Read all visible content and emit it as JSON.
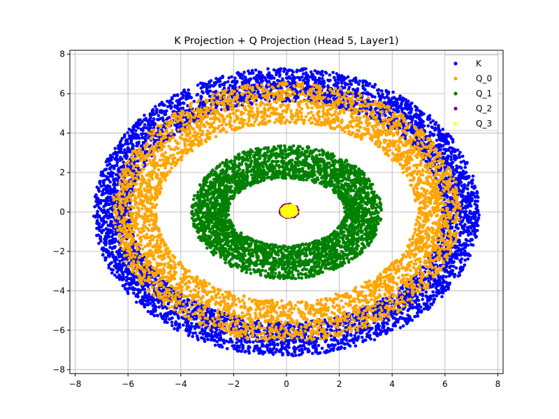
{
  "chart_data": {
    "type": "scatter",
    "title": "K Projection + Q Projection (Head 5, Layer1)",
    "xlabel": "",
    "ylabel": "",
    "xlim": [
      -8.2,
      8.2
    ],
    "ylim": [
      -8.2,
      8.2
    ],
    "xticks": [
      -8,
      -6,
      -4,
      -2,
      0,
      2,
      4,
      6,
      8
    ],
    "yticks": [
      -8,
      -6,
      -4,
      -2,
      0,
      2,
      4,
      6,
      8
    ],
    "grid": true,
    "legend_position": "top-right",
    "series": [
      {
        "name": "K",
        "color": "#0000ff",
        "shape": "ellipse-ring",
        "center": [
          0,
          0
        ],
        "rx": [
          5.9,
          7.3
        ],
        "ry": [
          5.6,
          7.3
        ],
        "approx_points": 5000
      },
      {
        "name": "Q_0",
        "color": "#ffa500",
        "shape": "ellipse-ring",
        "center": [
          0,
          0
        ],
        "rx": [
          4.9,
          6.6
        ],
        "ry": [
          4.5,
          6.6
        ],
        "approx_points": 4000
      },
      {
        "name": "Q_1",
        "color": "#008000",
        "shape": "ellipse-ring",
        "center": [
          0,
          0
        ],
        "rx": [
          2.2,
          3.6
        ],
        "ry": [
          1.7,
          3.4
        ],
        "approx_points": 3500
      },
      {
        "name": "Q_2",
        "color": "#800080",
        "shape": "disk",
        "center": [
          0.1,
          0.05
        ],
        "r": [
          0,
          0.35
        ],
        "approx_points": 200
      },
      {
        "name": "Q_3",
        "color": "#ffff00",
        "shape": "disk",
        "center": [
          0.1,
          0.05
        ],
        "r": [
          0,
          0.3
        ],
        "approx_points": 200
      }
    ]
  }
}
